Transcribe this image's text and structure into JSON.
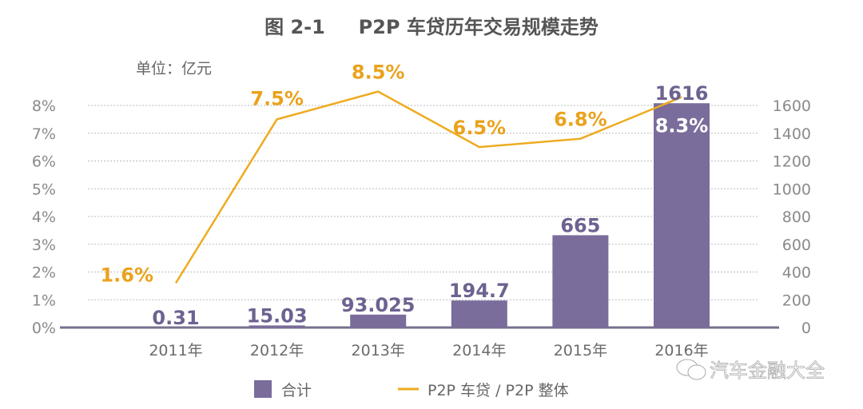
{
  "chart_data": {
    "type": "bar+line",
    "title": "图 2-1     P2P 车贷历年交易规模走势",
    "unit_label": "单位：亿元",
    "categories": [
      "2011年",
      "2012年",
      "2013年",
      "2014年",
      "2015年",
      "2016年"
    ],
    "series": [
      {
        "name": "合计",
        "type": "bar",
        "axis": "right",
        "values": [
          0.31,
          15.03,
          93.025,
          194.7,
          665,
          1616
        ],
        "labels": [
          "0.31",
          "15.03",
          "93.025",
          "194.7",
          "665",
          "1616"
        ],
        "color": "#7a6c9b"
      },
      {
        "name": "P2P 车贷 / P2P 整体",
        "type": "line",
        "axis": "left",
        "values": [
          1.6,
          7.5,
          8.5,
          6.5,
          6.8,
          8.3
        ],
        "labels": [
          "1.6%",
          "7.5%",
          "8.5%",
          "6.5%",
          "6.8%",
          "8.3%"
        ],
        "color": "#eeab1f"
      }
    ],
    "left_axis": {
      "ylim": [
        0,
        8
      ],
      "ticks": [
        "0%",
        "1%",
        "2%",
        "3%",
        "4%",
        "5%",
        "6%",
        "7%",
        "8%"
      ]
    },
    "right_axis": {
      "ylim": [
        0,
        1600
      ],
      "ticks": [
        "0",
        "200",
        "400",
        "600",
        "800",
        "1000",
        "1200",
        "1400",
        "1600"
      ]
    },
    "grid": true,
    "legend": "bottom"
  },
  "watermark": "汽车金融大全"
}
